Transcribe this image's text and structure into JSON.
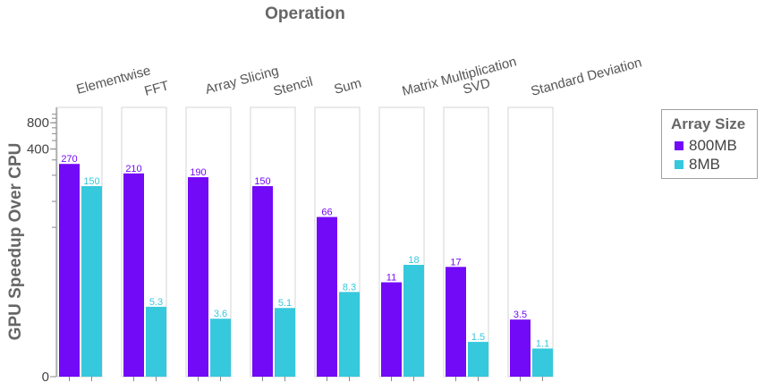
{
  "chart_data": {
    "type": "bar",
    "title": "Operation",
    "ylabel": "GPU Speedup Over CPU",
    "yscale": "symlog",
    "yticks": [
      0,
      400,
      800
    ],
    "categories": [
      "Elementwise",
      "FFT",
      "Array Slicing",
      "Stencil",
      "Sum",
      "Matrix Multiplication",
      "SVD",
      "Standard Deviation"
    ],
    "series": [
      {
        "name": "800MB",
        "color": "#7209f7",
        "values": [
          270,
          210,
          190,
          150,
          66,
          11,
          17,
          3.5
        ],
        "labels": [
          "270",
          "210",
          "190",
          "150",
          "66",
          "11",
          "17",
          "3.5"
        ]
      },
      {
        "name": "8MB",
        "color": "#36c8dd",
        "values": [
          150,
          5.3,
          3.6,
          5.1,
          8.3,
          18,
          1.5,
          1.1
        ],
        "labels": [
          "150",
          "5.3",
          "3.6",
          "5.1",
          "8.3",
          "18",
          "1.5",
          "1.1"
        ]
      }
    ],
    "legend": {
      "title": "Array Size",
      "position": "right"
    }
  }
}
